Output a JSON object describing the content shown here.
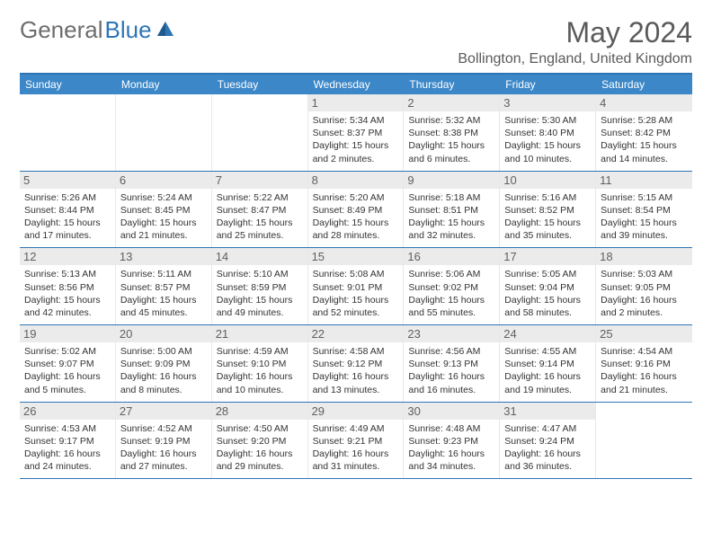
{
  "logo": {
    "text1": "General",
    "text2": "Blue"
  },
  "title": "May 2024",
  "location": "Bollington, England, United Kingdom",
  "colors": {
    "header_bg": "#3b87c8",
    "border": "#2e75b6",
    "daynum_bg": "#ebebeb",
    "text": "#333333",
    "title_text": "#5a5a5a"
  },
  "day_names": [
    "Sunday",
    "Monday",
    "Tuesday",
    "Wednesday",
    "Thursday",
    "Friday",
    "Saturday"
  ],
  "weeks": [
    [
      {
        "n": "",
        "sr": "",
        "ss": "",
        "dl": ""
      },
      {
        "n": "",
        "sr": "",
        "ss": "",
        "dl": ""
      },
      {
        "n": "",
        "sr": "",
        "ss": "",
        "dl": ""
      },
      {
        "n": "1",
        "sr": "Sunrise: 5:34 AM",
        "ss": "Sunset: 8:37 PM",
        "dl": "Daylight: 15 hours and 2 minutes."
      },
      {
        "n": "2",
        "sr": "Sunrise: 5:32 AM",
        "ss": "Sunset: 8:38 PM",
        "dl": "Daylight: 15 hours and 6 minutes."
      },
      {
        "n": "3",
        "sr": "Sunrise: 5:30 AM",
        "ss": "Sunset: 8:40 PM",
        "dl": "Daylight: 15 hours and 10 minutes."
      },
      {
        "n": "4",
        "sr": "Sunrise: 5:28 AM",
        "ss": "Sunset: 8:42 PM",
        "dl": "Daylight: 15 hours and 14 minutes."
      }
    ],
    [
      {
        "n": "5",
        "sr": "Sunrise: 5:26 AM",
        "ss": "Sunset: 8:44 PM",
        "dl": "Daylight: 15 hours and 17 minutes."
      },
      {
        "n": "6",
        "sr": "Sunrise: 5:24 AM",
        "ss": "Sunset: 8:45 PM",
        "dl": "Daylight: 15 hours and 21 minutes."
      },
      {
        "n": "7",
        "sr": "Sunrise: 5:22 AM",
        "ss": "Sunset: 8:47 PM",
        "dl": "Daylight: 15 hours and 25 minutes."
      },
      {
        "n": "8",
        "sr": "Sunrise: 5:20 AM",
        "ss": "Sunset: 8:49 PM",
        "dl": "Daylight: 15 hours and 28 minutes."
      },
      {
        "n": "9",
        "sr": "Sunrise: 5:18 AM",
        "ss": "Sunset: 8:51 PM",
        "dl": "Daylight: 15 hours and 32 minutes."
      },
      {
        "n": "10",
        "sr": "Sunrise: 5:16 AM",
        "ss": "Sunset: 8:52 PM",
        "dl": "Daylight: 15 hours and 35 minutes."
      },
      {
        "n": "11",
        "sr": "Sunrise: 5:15 AM",
        "ss": "Sunset: 8:54 PM",
        "dl": "Daylight: 15 hours and 39 minutes."
      }
    ],
    [
      {
        "n": "12",
        "sr": "Sunrise: 5:13 AM",
        "ss": "Sunset: 8:56 PM",
        "dl": "Daylight: 15 hours and 42 minutes."
      },
      {
        "n": "13",
        "sr": "Sunrise: 5:11 AM",
        "ss": "Sunset: 8:57 PM",
        "dl": "Daylight: 15 hours and 45 minutes."
      },
      {
        "n": "14",
        "sr": "Sunrise: 5:10 AM",
        "ss": "Sunset: 8:59 PM",
        "dl": "Daylight: 15 hours and 49 minutes."
      },
      {
        "n": "15",
        "sr": "Sunrise: 5:08 AM",
        "ss": "Sunset: 9:01 PM",
        "dl": "Daylight: 15 hours and 52 minutes."
      },
      {
        "n": "16",
        "sr": "Sunrise: 5:06 AM",
        "ss": "Sunset: 9:02 PM",
        "dl": "Daylight: 15 hours and 55 minutes."
      },
      {
        "n": "17",
        "sr": "Sunrise: 5:05 AM",
        "ss": "Sunset: 9:04 PM",
        "dl": "Daylight: 15 hours and 58 minutes."
      },
      {
        "n": "18",
        "sr": "Sunrise: 5:03 AM",
        "ss": "Sunset: 9:05 PM",
        "dl": "Daylight: 16 hours and 2 minutes."
      }
    ],
    [
      {
        "n": "19",
        "sr": "Sunrise: 5:02 AM",
        "ss": "Sunset: 9:07 PM",
        "dl": "Daylight: 16 hours and 5 minutes."
      },
      {
        "n": "20",
        "sr": "Sunrise: 5:00 AM",
        "ss": "Sunset: 9:09 PM",
        "dl": "Daylight: 16 hours and 8 minutes."
      },
      {
        "n": "21",
        "sr": "Sunrise: 4:59 AM",
        "ss": "Sunset: 9:10 PM",
        "dl": "Daylight: 16 hours and 10 minutes."
      },
      {
        "n": "22",
        "sr": "Sunrise: 4:58 AM",
        "ss": "Sunset: 9:12 PM",
        "dl": "Daylight: 16 hours and 13 minutes."
      },
      {
        "n": "23",
        "sr": "Sunrise: 4:56 AM",
        "ss": "Sunset: 9:13 PM",
        "dl": "Daylight: 16 hours and 16 minutes."
      },
      {
        "n": "24",
        "sr": "Sunrise: 4:55 AM",
        "ss": "Sunset: 9:14 PM",
        "dl": "Daylight: 16 hours and 19 minutes."
      },
      {
        "n": "25",
        "sr": "Sunrise: 4:54 AM",
        "ss": "Sunset: 9:16 PM",
        "dl": "Daylight: 16 hours and 21 minutes."
      }
    ],
    [
      {
        "n": "26",
        "sr": "Sunrise: 4:53 AM",
        "ss": "Sunset: 9:17 PM",
        "dl": "Daylight: 16 hours and 24 minutes."
      },
      {
        "n": "27",
        "sr": "Sunrise: 4:52 AM",
        "ss": "Sunset: 9:19 PM",
        "dl": "Daylight: 16 hours and 27 minutes."
      },
      {
        "n": "28",
        "sr": "Sunrise: 4:50 AM",
        "ss": "Sunset: 9:20 PM",
        "dl": "Daylight: 16 hours and 29 minutes."
      },
      {
        "n": "29",
        "sr": "Sunrise: 4:49 AM",
        "ss": "Sunset: 9:21 PM",
        "dl": "Daylight: 16 hours and 31 minutes."
      },
      {
        "n": "30",
        "sr": "Sunrise: 4:48 AM",
        "ss": "Sunset: 9:23 PM",
        "dl": "Daylight: 16 hours and 34 minutes."
      },
      {
        "n": "31",
        "sr": "Sunrise: 4:47 AM",
        "ss": "Sunset: 9:24 PM",
        "dl": "Daylight: 16 hours and 36 minutes."
      },
      {
        "n": "",
        "sr": "",
        "ss": "",
        "dl": ""
      }
    ]
  ]
}
